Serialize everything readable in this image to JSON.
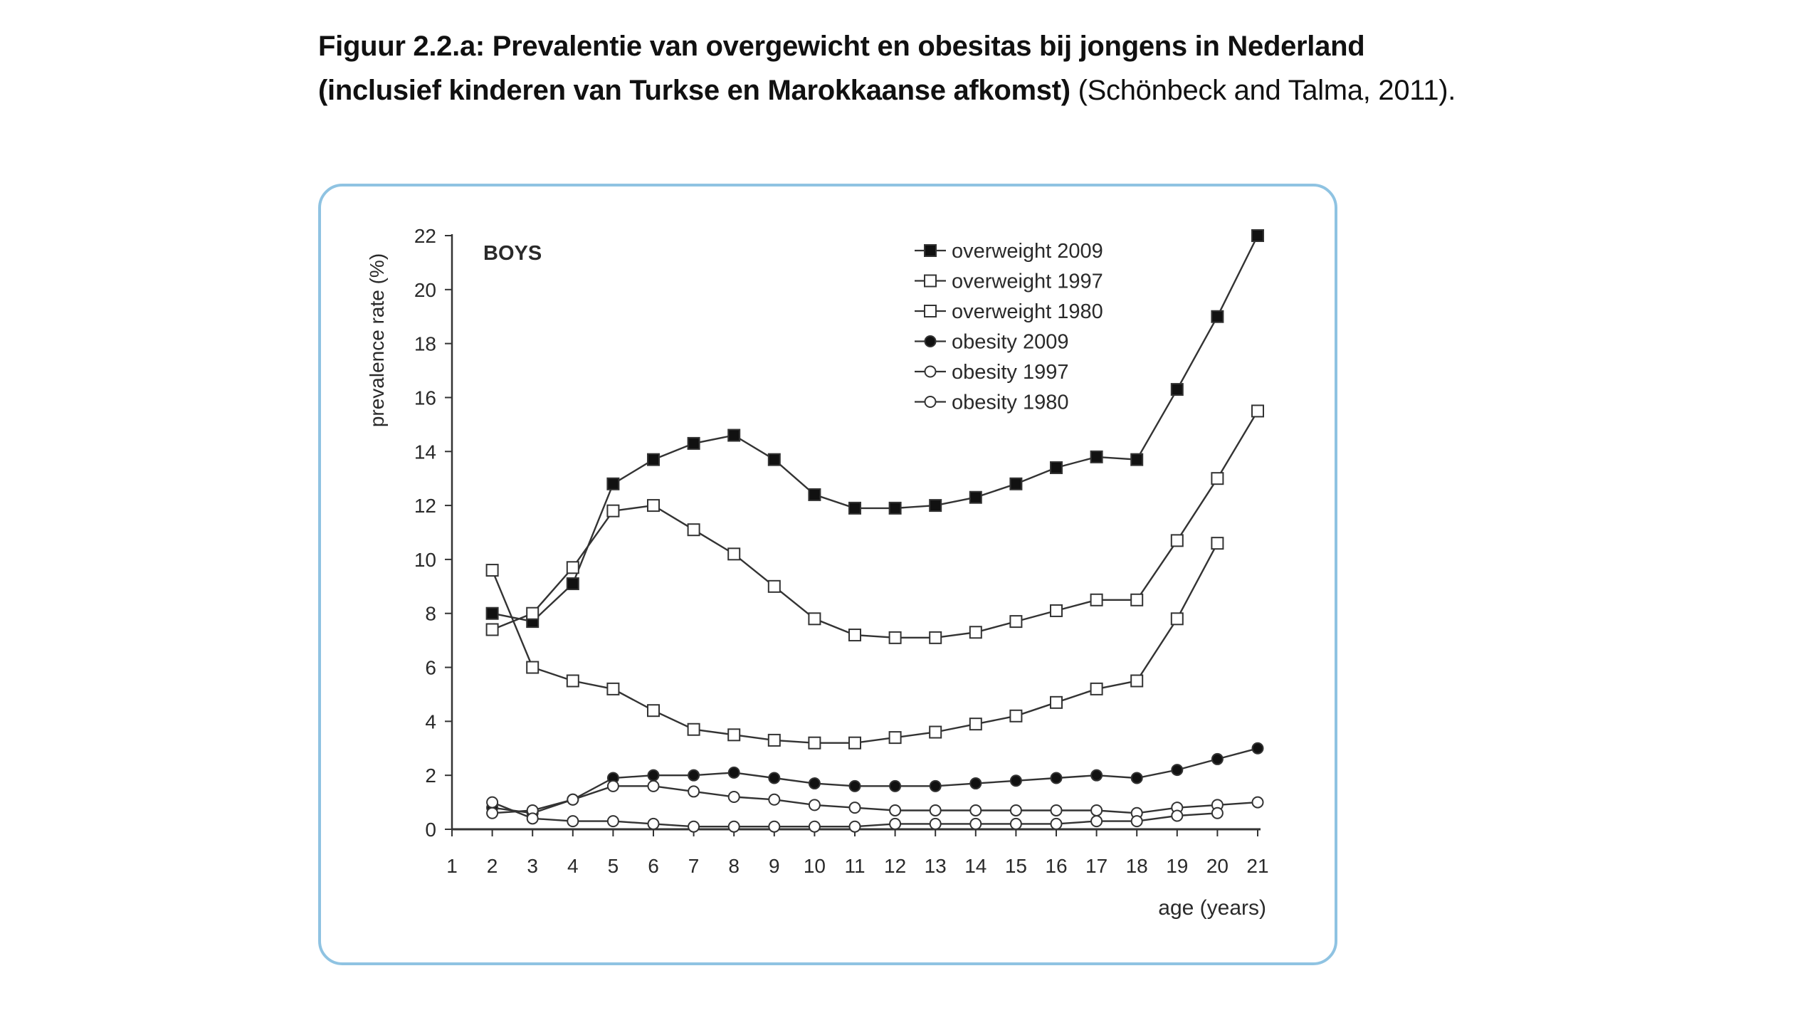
{
  "caption": {
    "line1": "Figuur 2.2.a: Prevalentie van overgewicht en obesitas bij jongens in Nederland",
    "line2_bold": "(inclusief kinderen van Turkse en Marokkaanse afkomst)",
    "line2_normal": " (Schönbeck and Talma, 2011)."
  },
  "colors": {
    "frame_border": "#8fc3e2",
    "line": "#333333",
    "marker_fill": "#111111"
  },
  "chart_data": {
    "type": "line",
    "panel_label": "BOYS",
    "xlabel": "age (years)",
    "ylabel": "prevalence rate (%)",
    "xlim": [
      1,
      21
    ],
    "ylim": [
      0,
      22
    ],
    "x_ticks": [
      1,
      2,
      3,
      4,
      5,
      6,
      7,
      8,
      9,
      10,
      11,
      12,
      13,
      14,
      15,
      16,
      17,
      18,
      19,
      20,
      21
    ],
    "y_ticks": [
      0,
      2,
      4,
      6,
      8,
      10,
      12,
      14,
      16,
      18,
      20,
      22
    ],
    "legend_position": "top-right",
    "series": [
      {
        "name": "overweight 2009",
        "marker": "square",
        "filled": true,
        "x": [
          2,
          3,
          4,
          5,
          6,
          7,
          8,
          9,
          10,
          11,
          12,
          13,
          14,
          15,
          16,
          17,
          18,
          19,
          20,
          21
        ],
        "values": [
          8.0,
          7.7,
          9.1,
          12.8,
          13.7,
          14.3,
          14.6,
          13.7,
          12.4,
          11.9,
          11.9,
          12.0,
          12.3,
          12.8,
          13.4,
          13.8,
          13.7,
          16.3,
          19.0,
          22.0
        ]
      },
      {
        "name": "overweight 1997",
        "marker": "square",
        "filled": false,
        "x": [
          2,
          3,
          4,
          5,
          6,
          7,
          8,
          9,
          10,
          11,
          12,
          13,
          14,
          15,
          16,
          17,
          18,
          19,
          20,
          21
        ],
        "values": [
          7.4,
          8.0,
          9.7,
          11.8,
          12.0,
          11.1,
          10.2,
          9.0,
          7.8,
          7.2,
          7.1,
          7.1,
          7.3,
          7.7,
          8.1,
          8.5,
          8.5,
          10.7,
          13.0,
          15.5
        ]
      },
      {
        "name": "overweight 1980",
        "marker": "square",
        "filled": false,
        "x": [
          2,
          3,
          4,
          5,
          6,
          7,
          8,
          9,
          10,
          11,
          12,
          13,
          14,
          15,
          16,
          17,
          18,
          19,
          20
        ],
        "values": [
          9.6,
          6.0,
          5.5,
          5.2,
          4.4,
          3.7,
          3.5,
          3.3,
          3.2,
          3.2,
          3.4,
          3.6,
          3.9,
          4.2,
          4.7,
          5.2,
          5.5,
          7.8,
          10.6
        ]
      },
      {
        "name": "obesity 2009",
        "marker": "circle",
        "filled": true,
        "x": [
          2,
          3,
          4,
          5,
          6,
          7,
          8,
          9,
          10,
          11,
          12,
          13,
          14,
          15,
          16,
          17,
          18,
          19,
          20,
          21
        ],
        "values": [
          0.8,
          0.6,
          1.1,
          1.9,
          2.0,
          2.0,
          2.1,
          1.9,
          1.7,
          1.6,
          1.6,
          1.6,
          1.7,
          1.8,
          1.9,
          2.0,
          1.9,
          2.2,
          2.6,
          3.0
        ]
      },
      {
        "name": "obesity 1997",
        "marker": "circle",
        "filled": false,
        "x": [
          2,
          3,
          4,
          5,
          6,
          7,
          8,
          9,
          10,
          11,
          12,
          13,
          14,
          15,
          16,
          17,
          18,
          19,
          20,
          21
        ],
        "values": [
          0.6,
          0.7,
          1.1,
          1.6,
          1.6,
          1.4,
          1.2,
          1.1,
          0.9,
          0.8,
          0.7,
          0.7,
          0.7,
          0.7,
          0.7,
          0.7,
          0.6,
          0.8,
          0.9,
          1.0
        ]
      },
      {
        "name": "obesity 1980",
        "marker": "circle",
        "filled": false,
        "x": [
          2,
          3,
          4,
          5,
          6,
          7,
          8,
          9,
          10,
          11,
          12,
          13,
          14,
          15,
          16,
          17,
          18,
          19,
          20
        ],
        "values": [
          1.0,
          0.4,
          0.3,
          0.3,
          0.2,
          0.1,
          0.1,
          0.1,
          0.1,
          0.1,
          0.2,
          0.2,
          0.2,
          0.2,
          0.2,
          0.3,
          0.3,
          0.5,
          0.6
        ]
      }
    ]
  }
}
